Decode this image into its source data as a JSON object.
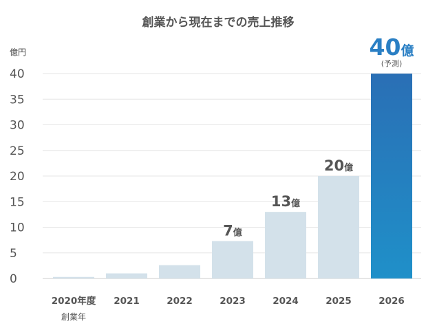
{
  "chart_data": {
    "type": "bar",
    "title": "創業から現在までの売上推移",
    "ylabel": "億円",
    "ylim": [
      0,
      40
    ],
    "yticks": [
      0,
      5,
      10,
      15,
      20,
      25,
      30,
      35,
      40
    ],
    "grid": true,
    "categories": [
      "2020年度",
      "2021",
      "2022",
      "2023",
      "2024",
      "2025",
      "2026"
    ],
    "category_sublabels": [
      "創業年",
      "",
      "",
      "",
      "",
      "",
      ""
    ],
    "values": [
      0.3,
      1,
      2.6,
      7.3,
      13,
      20,
      40
    ],
    "data_labels": [
      "",
      "",
      "",
      "7",
      "13",
      "20",
      "40"
    ],
    "data_label_unit": "億",
    "highlight_index": 6,
    "highlight_note": "(予測)",
    "colors": {
      "bar": "#d3e1ea",
      "highlight_top": "#2a6fb5",
      "highlight_bottom": "#1f90c9",
      "highlight_text": "#2a7fc4"
    }
  }
}
